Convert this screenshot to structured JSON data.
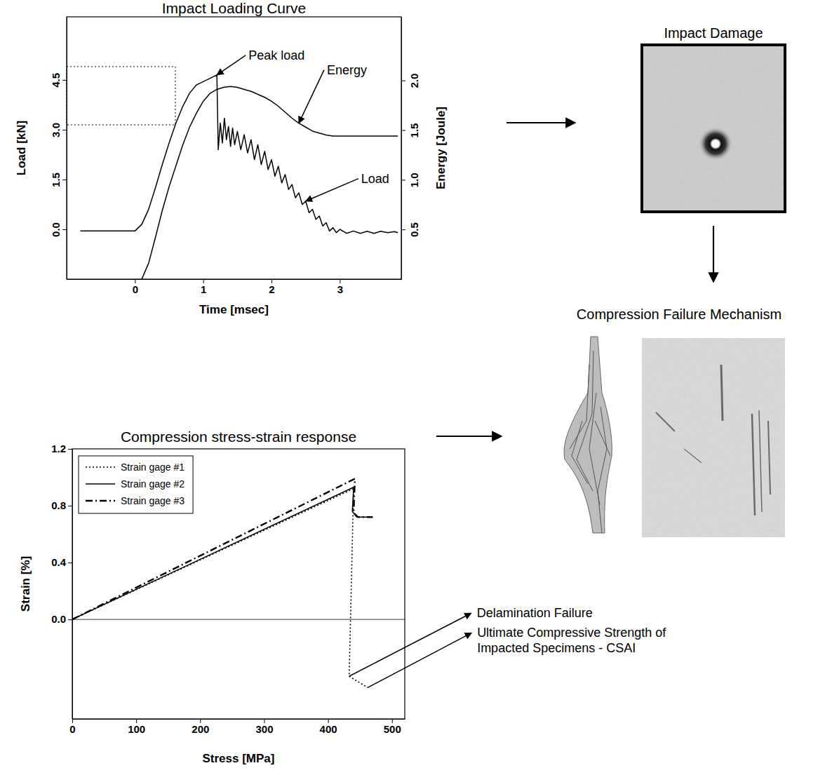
{
  "chart_data": [
    {
      "type": "line",
      "title": "Impact Loading Curve",
      "x_label": "Time [msec]",
      "y_label": "Load [kN]",
      "y2_label": "Energy [Joule]",
      "xlim": [
        -1,
        3.9
      ],
      "xticks": [
        0,
        1,
        2,
        3
      ],
      "ylim": [
        -1.5,
        6.4
      ],
      "yticks": [
        {
          "value": 0,
          "label": "0.0"
        },
        1.5,
        {
          "value": 3,
          "label": "3.0"
        },
        4.5
      ],
      "y2lim": [
        0,
        2.64
      ],
      "y2ticks": [
        0.5,
        {
          "value": 1,
          "label": "1.0"
        },
        1.5,
        {
          "value": 2,
          "label": "2.0"
        }
      ],
      "series": [
        {
          "color": "#000000",
          "line_style": "solid",
          "x": [
            -0.8,
            -0.4,
            0,
            0.1,
            0.2,
            0.3,
            0.4,
            0.5,
            0.6,
            0.7,
            0.8,
            0.9,
            1.0,
            1.1,
            1.2,
            1.22,
            1.25,
            1.28,
            1.31,
            1.34,
            1.37,
            1.4,
            1.43,
            1.46,
            1.5,
            1.55,
            1.6,
            1.65,
            1.7,
            1.75,
            1.8,
            1.85,
            1.9,
            1.95,
            2.0,
            2.05,
            2.1,
            2.15,
            2.2,
            2.25,
            2.3,
            2.35,
            2.4,
            2.45,
            2.5,
            2.55,
            2.6,
            2.65,
            2.7,
            2.75,
            2.8,
            2.85,
            2.9,
            2.95,
            3.0,
            3.1,
            3.2,
            3.3,
            3.4,
            3.5,
            3.6,
            3.7,
            3.8,
            3.85
          ],
          "values": [
            -0.05,
            -0.05,
            -0.05,
            0.15,
            0.6,
            1.25,
            1.95,
            2.6,
            3.2,
            3.7,
            4.1,
            4.35,
            4.45,
            4.55,
            4.65,
            2.4,
            3.2,
            2.6,
            3.35,
            2.7,
            3.1,
            2.5,
            3.05,
            2.55,
            2.95,
            2.4,
            2.85,
            2.3,
            2.7,
            2.1,
            2.55,
            1.95,
            2.35,
            1.8,
            2.1,
            1.6,
            1.9,
            1.4,
            1.65,
            1.2,
            1.35,
            0.95,
            1.1,
            0.75,
            0.85,
            0.5,
            0.6,
            0.3,
            0.4,
            0.1,
            0.2,
            -0.05,
            0.05,
            -0.1,
            0.0,
            -0.12,
            -0.05,
            -0.12,
            -0.06,
            -0.12,
            -0.06,
            -0.1,
            -0.07,
            -0.1
          ]
        },
        {
          "color": "#000000",
          "line_style": "solid",
          "axis": "y2",
          "x": [
            0.1,
            0.2,
            0.3,
            0.4,
            0.5,
            0.6,
            0.7,
            0.8,
            0.9,
            1.0,
            1.1,
            1.2,
            1.3,
            1.4,
            1.5,
            1.6,
            1.7,
            1.8,
            1.9,
            2.0,
            2.1,
            2.2,
            2.3,
            2.4,
            2.5,
            2.6,
            2.7,
            2.8,
            2.9,
            3.0,
            3.2,
            3.4,
            3.6,
            3.85
          ],
          "values": [
            0.0,
            0.16,
            0.42,
            0.69,
            0.93,
            1.14,
            1.35,
            1.53,
            1.67,
            1.79,
            1.87,
            1.91,
            1.93,
            1.94,
            1.93,
            1.91,
            1.89,
            1.86,
            1.83,
            1.79,
            1.74,
            1.68,
            1.62,
            1.57,
            1.53,
            1.49,
            1.47,
            1.45,
            1.44,
            1.44,
            1.44,
            1.44,
            1.44,
            1.44
          ]
        }
      ],
      "annotations": [
        {
          "text": "Peak load",
          "x": 1.2,
          "y": 4.65
        },
        {
          "text": "Energy",
          "x": 2.4,
          "y": 1.57,
          "axis": "y2"
        },
        {
          "text": "Load",
          "x": 2.5,
          "y": 0.85
        }
      ]
    },
    {
      "type": "line",
      "title": "Compression stress-strain response",
      "x_label": "Stress [MPa]",
      "y_label": "Strain [%]",
      "xlim": [
        0,
        520
      ],
      "xticks": [
        0,
        100,
        200,
        300,
        400,
        500
      ],
      "ylim": [
        -0.7,
        1.2
      ],
      "yticks": [
        {
          "value": 0,
          "label": "0.0"
        },
        0.4,
        0.8,
        1.2
      ],
      "legend": "upper left",
      "series": [
        {
          "name": "Strain gage #1",
          "color": "#000000",
          "line_style": "dotted",
          "x": [
            0,
            440,
            433,
            462
          ],
          "values": [
            0,
            0.92,
            -0.4,
            -0.48
          ]
        },
        {
          "name": "Strain gage #2",
          "color": "#000000",
          "line_style": "solid",
          "x": [
            0,
            440,
            438,
            445,
            468
          ],
          "values": [
            0,
            0.93,
            0.76,
            0.72,
            0.72
          ]
        },
        {
          "name": "Strain gage #3",
          "color": "#000000",
          "line_style": "dashdot",
          "x": [
            0,
            442,
            440,
            447,
            470
          ],
          "values": [
            0,
            0.99,
            0.75,
            0.72,
            0.72
          ]
        }
      ],
      "annotations": [
        {
          "text": "Delamination Failure",
          "x": 433,
          "y": -0.4
        },
        {
          "text": "Ultimate Compressive Strength of Impacted Specimens - CSAI",
          "x": 462,
          "y": -0.48
        }
      ]
    }
  ],
  "panels": [
    {
      "title": "Impact Damage"
    },
    {
      "title": "Compression Failure Mechanism"
    }
  ]
}
